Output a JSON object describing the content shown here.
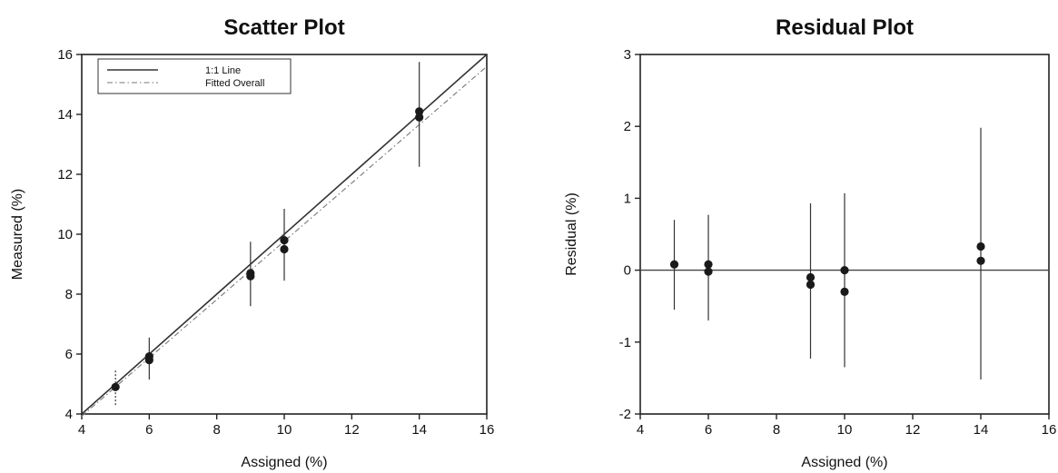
{
  "chart_data": [
    {
      "type": "scatter",
      "title": "Scatter Plot",
      "xlabel": "Assigned (%)",
      "ylabel": "Measured (%)",
      "xlim": [
        4,
        16
      ],
      "ylim": [
        4,
        16
      ],
      "xticks": [
        4,
        6,
        8,
        10,
        12,
        14,
        16
      ],
      "yticks": [
        4,
        6,
        8,
        10,
        12,
        14,
        16
      ],
      "legend": {
        "placement": "top-left",
        "entries": [
          {
            "label": "1:1 Line",
            "style": "solid"
          },
          {
            "label": "Fitted Overall",
            "style": "dash-dot"
          }
        ]
      },
      "lines": [
        {
          "name": "1:1 Line",
          "x": [
            4,
            16
          ],
          "y": [
            4,
            16
          ]
        },
        {
          "name": "Fitted Overall",
          "x": [
            4,
            16
          ],
          "y": [
            3.93,
            15.6
          ]
        }
      ],
      "points": [
        {
          "x": 5,
          "y": 4.9
        },
        {
          "x": 6,
          "y": 5.92
        },
        {
          "x": 6,
          "y": 5.8
        },
        {
          "x": 9,
          "y": 8.7
        },
        {
          "x": 9,
          "y": 8.6
        },
        {
          "x": 10,
          "y": 9.8
        },
        {
          "x": 10,
          "y": 9.5
        },
        {
          "x": 14,
          "y": 14.1
        },
        {
          "x": 14,
          "y": 13.9
        }
      ],
      "error_bars": [
        {
          "x": 5,
          "low": 4.3,
          "high": 5.5,
          "style": "dotted"
        },
        {
          "x": 6,
          "low": 5.15,
          "high": 6.55,
          "style": "solid"
        },
        {
          "x": 9,
          "low": 7.6,
          "high": 9.75,
          "style": "solid"
        },
        {
          "x": 10,
          "low": 8.45,
          "high": 10.85,
          "style": "solid"
        },
        {
          "x": 14,
          "low": 12.25,
          "high": 15.75,
          "style": "solid"
        }
      ],
      "grid": false
    },
    {
      "type": "scatter",
      "title": "Residual Plot",
      "xlabel": "Assigned (%)",
      "ylabel": "Residual (%)",
      "xlim": [
        4,
        16
      ],
      "ylim": [
        -2,
        3
      ],
      "xticks": [
        4,
        6,
        8,
        10,
        12,
        14,
        16
      ],
      "yticks": [
        -2,
        -1,
        0,
        1,
        2,
        3
      ],
      "zero_line": 0,
      "points": [
        {
          "x": 5,
          "y": 0.08
        },
        {
          "x": 6,
          "y": 0.08
        },
        {
          "x": 6,
          "y": -0.02
        },
        {
          "x": 9,
          "y": -0.1
        },
        {
          "x": 9,
          "y": -0.2
        },
        {
          "x": 10,
          "y": 0.0
        },
        {
          "x": 10,
          "y": -0.3
        },
        {
          "x": 14,
          "y": 0.33
        },
        {
          "x": 14,
          "y": 0.13
        }
      ],
      "error_bars": [
        {
          "x": 5,
          "low": -0.55,
          "high": 0.7
        },
        {
          "x": 6,
          "low": -0.7,
          "high": 0.77
        },
        {
          "x": 9,
          "low": -1.23,
          "high": 0.93
        },
        {
          "x": 10,
          "low": -1.35,
          "high": 1.07
        },
        {
          "x": 14,
          "low": -1.52,
          "high": 1.98
        }
      ],
      "grid": false
    }
  ]
}
